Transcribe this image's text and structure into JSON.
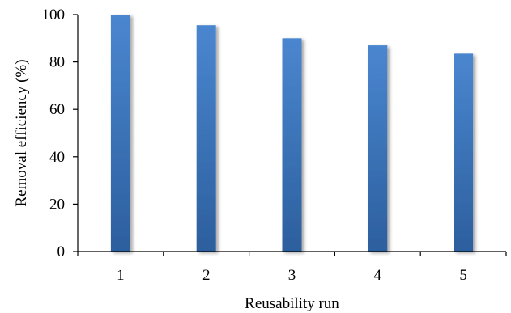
{
  "chart_data": {
    "type": "bar",
    "title": "",
    "categories": [
      "1",
      "2",
      "3",
      "4",
      "5"
    ],
    "values": [
      100,
      95.5,
      90,
      87,
      83.5
    ],
    "xlabel": "Reusability run",
    "ylabel": "Removal efficiency (%)",
    "ylim": [
      0,
      100
    ],
    "yticks": [
      "0",
      "20",
      "40",
      "60",
      "80",
      "100"
    ],
    "grid": false,
    "legend": "none",
    "bar_color_top": "#4a86cf",
    "bar_color_bottom": "#2c5f9e"
  }
}
